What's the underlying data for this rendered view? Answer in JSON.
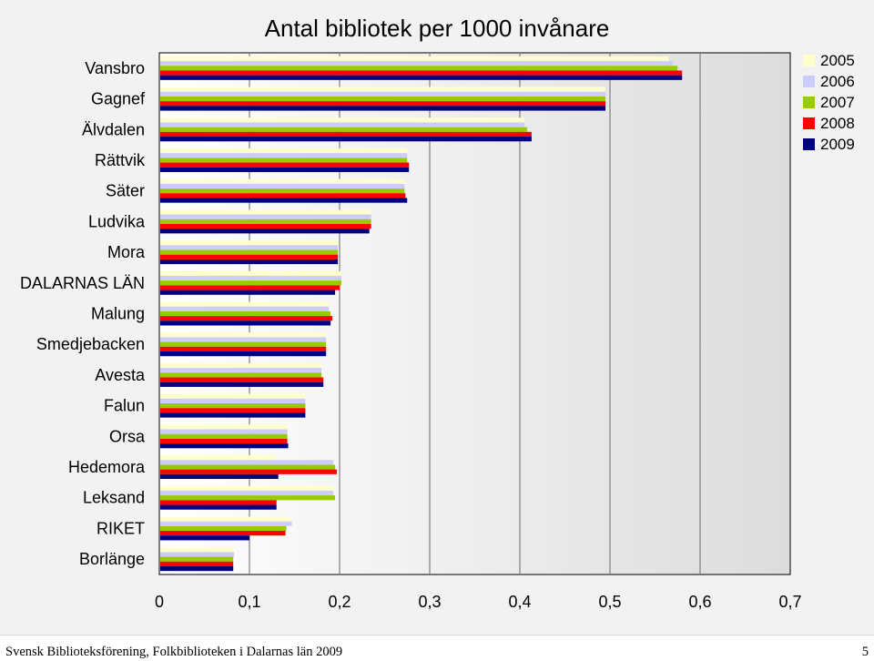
{
  "footer": {
    "text": "Svensk Biblioteksförening, Folkbiblioteken i Dalarnas län 2009",
    "page": "5"
  },
  "chart_data": {
    "type": "bar",
    "orientation": "horizontal",
    "title": "Antal bibliotek per 1000 invånare",
    "xlabel": "",
    "ylabel": "",
    "xlim": [
      0,
      0.7
    ],
    "xticks": [
      "0",
      "0,1",
      "0,2",
      "0,3",
      "0,4",
      "0,5",
      "0,6",
      "0,7"
    ],
    "grid": true,
    "legend_position": "top-right",
    "categories": [
      "Vansbro",
      "Gagnef",
      "Älvdalen",
      "Rättvik",
      "Säter",
      "Ludvika",
      "Mora",
      "DALARNAS LÄN",
      "Malung",
      "Smedjebacken",
      "Avesta",
      "Falun",
      "Orsa",
      "Hedemora",
      "Leksand",
      "RIKET",
      "Borlänge"
    ],
    "series": [
      {
        "name": "2005",
        "color": "#ffffcc",
        "values": [
          0.565,
          0.495,
          0.405,
          0.275,
          0.272,
          0.235,
          0.198,
          0.202,
          0.188,
          0.185,
          0.18,
          0.162,
          0.142,
          0.128,
          0.193,
          0.145,
          0.083
        ]
      },
      {
        "name": "2006",
        "color": "#ccccff",
        "values": [
          0.57,
          0.495,
          0.405,
          0.275,
          0.272,
          0.235,
          0.198,
          0.202,
          0.188,
          0.185,
          0.18,
          0.162,
          0.142,
          0.193,
          0.193,
          0.147,
          0.083
        ]
      },
      {
        "name": "2007",
        "color": "#99cc00",
        "values": [
          0.575,
          0.495,
          0.408,
          0.275,
          0.272,
          0.235,
          0.198,
          0.202,
          0.19,
          0.185,
          0.18,
          0.162,
          0.142,
          0.195,
          0.195,
          0.141,
          0.082
        ]
      },
      {
        "name": "2008",
        "color": "#ff0000",
        "values": [
          0.58,
          0.495,
          0.413,
          0.277,
          0.273,
          0.235,
          0.198,
          0.2,
          0.192,
          0.185,
          0.182,
          0.162,
          0.142,
          0.197,
          0.13,
          0.14,
          0.082
        ]
      },
      {
        "name": "2009",
        "color": "#000080",
        "values": [
          0.58,
          0.495,
          0.413,
          0.277,
          0.275,
          0.233,
          0.198,
          0.195,
          0.19,
          0.185,
          0.182,
          0.162,
          0.143,
          0.132,
          0.13,
          0.1,
          0.082
        ]
      }
    ]
  }
}
